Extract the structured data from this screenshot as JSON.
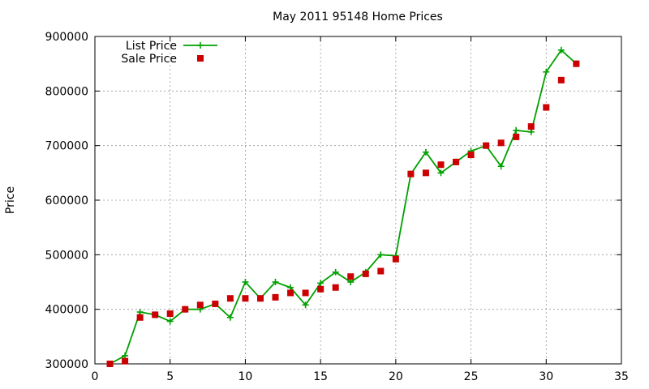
{
  "chart_data": {
    "type": "line",
    "title": "May 2011 95148 Home Prices",
    "xlabel": "",
    "ylabel": "Price",
    "xlim": [
      0,
      35
    ],
    "ylim": [
      300000,
      900000
    ],
    "x_ticks": [
      "0",
      "5",
      "10",
      "15",
      "20",
      "25",
      "30",
      "35"
    ],
    "y_ticks": [
      "300000",
      "400000",
      "500000",
      "600000",
      "700000",
      "800000",
      "900000"
    ],
    "grid": true,
    "legend_position": "top-left",
    "series": [
      {
        "name": "List Price",
        "style": "line+cross",
        "color": "#00a000",
        "x": [
          1,
          2,
          3,
          4,
          5,
          6,
          7,
          8,
          9,
          10,
          11,
          12,
          13,
          14,
          15,
          16,
          17,
          18,
          19,
          20,
          21,
          22,
          23,
          24,
          25,
          26,
          27,
          28,
          29,
          30,
          31,
          32
        ],
        "values": [
          300000,
          315000,
          395000,
          390000,
          378000,
          400000,
          400000,
          410000,
          385000,
          450000,
          420000,
          450000,
          440000,
          408000,
          448000,
          468000,
          450000,
          468000,
          500000,
          498000,
          648000,
          688000,
          650000,
          670000,
          690000,
          700000,
          662000,
          728000,
          725000,
          835000,
          875000,
          850000
        ]
      },
      {
        "name": "Sale Price",
        "style": "square",
        "color": "#cc0000",
        "x": [
          1,
          2,
          3,
          4,
          5,
          6,
          7,
          8,
          9,
          10,
          11,
          12,
          13,
          14,
          15,
          16,
          17,
          18,
          19,
          20,
          21,
          22,
          23,
          24,
          25,
          26,
          27,
          28,
          29,
          30,
          31,
          32
        ],
        "values": [
          300000,
          305000,
          385000,
          390000,
          392000,
          400000,
          408000,
          410000,
          420000,
          420000,
          420000,
          422000,
          430000,
          430000,
          437000,
          440000,
          460000,
          465000,
          470000,
          492000,
          648000,
          650000,
          665000,
          670000,
          683000,
          700000,
          705000,
          716000,
          735000,
          770000,
          820000,
          850000
        ]
      }
    ]
  }
}
